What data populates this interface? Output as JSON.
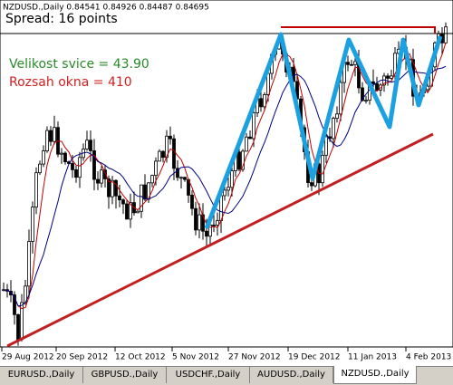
{
  "header": {
    "symbol_info": "NZDUSD.,Daily  0.84541 0.84926 0.84487 0.84695",
    "spread": "Spread: 16 points"
  },
  "annotations": {
    "candle_size": "Velikost svice = 43.90",
    "window_range": "Rozsah okna = 410"
  },
  "x_axis": {
    "labels": [
      "29 Aug 2012",
      "20 Sep 2012",
      "12 Oct 2012",
      "5 Nov 2012",
      "27 Nov 2012",
      "19 Dec 2012",
      "11 Jan 2013",
      "4 Feb 2013"
    ]
  },
  "tabs": [
    "EURUSD.,Daily",
    "GBPUSD.,Daily",
    "USDCHF.,Daily",
    "AUDUSD.,Daily",
    "NZDUSD.,Daily"
  ],
  "active_tab": 4
}
